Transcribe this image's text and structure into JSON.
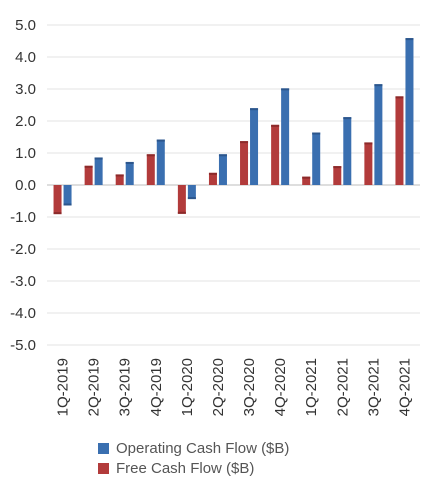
{
  "chart_data": {
    "type": "bar",
    "categories": [
      "1Q-2019",
      "2Q-2019",
      "3Q-2019",
      "4Q-2019",
      "1Q-2020",
      "2Q-2020",
      "3Q-2020",
      "4Q-2020",
      "1Q-2021",
      "2Q-2021",
      "3Q-2021",
      "4Q-2021"
    ],
    "series": [
      {
        "name": "Free Cash Flow ($B)",
        "color": "#b23b3b",
        "values": [
          -0.91,
          0.6,
          0.33,
          0.96,
          -0.9,
          0.38,
          1.37,
          1.88,
          0.26,
          0.59,
          1.33,
          2.77
        ]
      },
      {
        "name": "Operating Cash Flow ($B)",
        "color": "#3a6fb0",
        "values": [
          -0.64,
          0.86,
          0.72,
          1.42,
          -0.44,
          0.96,
          2.4,
          3.02,
          1.64,
          2.12,
          3.15,
          4.59
        ]
      }
    ],
    "ylim": [
      -5.0,
      5.0
    ],
    "yticks": [
      "-5.0",
      "-4.0",
      "-3.0",
      "-2.0",
      "-1.0",
      "0.0",
      "1.0",
      "2.0",
      "3.0",
      "4.0",
      "5.0"
    ],
    "grid": true,
    "legend": [
      "Operating Cash Flow ($B)",
      "Free Cash Flow ($B)"
    ],
    "legend_position": "bottom"
  }
}
